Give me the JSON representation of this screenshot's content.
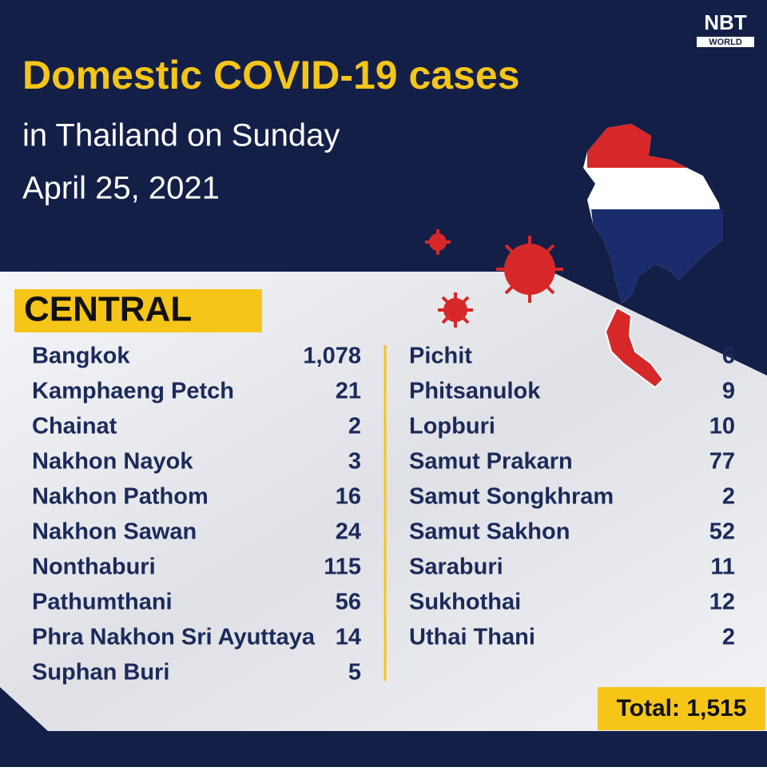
{
  "logo": {
    "name": "NBT",
    "sub": "WORLD"
  },
  "header": {
    "title": "Domestic COVID-19 cases",
    "subtitle": "in Thailand on Sunday",
    "date": "April 25, 2021"
  },
  "section": "CENTRAL",
  "table": {
    "left": [
      [
        "Bangkok",
        "1,078"
      ],
      [
        "Kamphaeng Petch",
        "21"
      ],
      [
        "Chainat",
        "2"
      ],
      [
        "Nakhon Nayok",
        "3"
      ],
      [
        "Nakhon Pathom",
        "16"
      ],
      [
        "Nakhon Sawan",
        "24"
      ],
      [
        "Nonthaburi",
        "115"
      ],
      [
        "Pathumthani",
        "56"
      ],
      [
        "Phra Nakhon Sri Ayuttaya",
        "14"
      ],
      [
        "Suphan Buri",
        "5"
      ]
    ],
    "right": [
      [
        "Pichit",
        "6"
      ],
      [
        "Phitsanulok",
        "9"
      ],
      [
        "Lopburi",
        "10"
      ],
      [
        "Samut Prakarn",
        "77"
      ],
      [
        "Samut Songkhram",
        "2"
      ],
      [
        "Samut Sakhon",
        "52"
      ],
      [
        "Saraburi",
        "11"
      ],
      [
        "Sukhothai",
        "12"
      ],
      [
        "Uthai Thani",
        "2"
      ]
    ]
  },
  "total": "Total: 1,515"
}
